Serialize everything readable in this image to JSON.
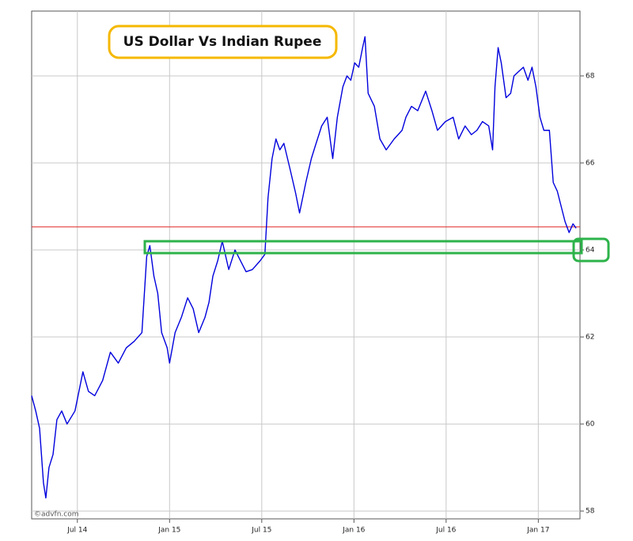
{
  "chart_data": {
    "type": "line",
    "title": "US Dollar Vs Indian Rupee",
    "credit": "©advfn.com",
    "color": "#0000dd",
    "grid": true,
    "xlim": [
      2014.252,
      2017.226
    ],
    "ylim": [
      57.82,
      69.49
    ],
    "xticks": [
      {
        "value": 2014.5,
        "label": "Jul 14"
      },
      {
        "value": 2015.0,
        "label": "Jan 15"
      },
      {
        "value": 2015.5,
        "label": "Jul 15"
      },
      {
        "value": 2016.0,
        "label": "Jan 16"
      },
      {
        "value": 2016.5,
        "label": "Jul 16"
      },
      {
        "value": 2017.0,
        "label": "Jan 17"
      }
    ],
    "yticks": [
      58,
      60,
      62,
      64,
      66,
      68
    ],
    "reference_line": {
      "value": 64.53,
      "color": "#e02020"
    },
    "x": [
      2014.252,
      2014.274,
      2014.295,
      2014.316,
      2014.329,
      2014.346,
      2014.368,
      2014.389,
      2014.415,
      2014.444,
      2014.487,
      2014.53,
      2014.56,
      2014.594,
      2014.637,
      2014.679,
      2014.722,
      2014.765,
      2014.808,
      2014.85,
      2014.876,
      2014.893,
      2014.915,
      2014.936,
      2014.957,
      2014.987,
      2015.0,
      2015.03,
      2015.064,
      2015.098,
      2015.128,
      2015.158,
      2015.192,
      2015.214,
      2015.235,
      2015.261,
      2015.286,
      2015.321,
      2015.355,
      2015.385,
      2015.415,
      2015.449,
      2015.491,
      2015.517,
      2015.534,
      2015.556,
      2015.577,
      2015.598,
      2015.62,
      2015.654,
      2015.684,
      2015.705,
      2015.739,
      2015.769,
      2015.791,
      2015.825,
      2015.855,
      2015.885,
      2015.91,
      2015.94,
      2015.962,
      2015.983,
      2016.004,
      2016.026,
      2016.047,
      2016.06,
      2016.077,
      2016.111,
      2016.141,
      2016.175,
      2016.218,
      2016.261,
      2016.282,
      2016.312,
      2016.346,
      2016.389,
      2016.423,
      2016.453,
      2016.496,
      2016.538,
      2016.568,
      2016.603,
      2016.637,
      2016.667,
      2016.697,
      2016.731,
      2016.752,
      2016.765,
      2016.782,
      2016.799,
      2016.825,
      2016.85,
      2016.868,
      2016.893,
      2016.919,
      2016.944,
      2016.966,
      2016.987,
      2017.009,
      2017.03,
      2017.06,
      2017.081,
      2017.103,
      2017.124,
      2017.145,
      2017.167,
      2017.188,
      2017.205
    ],
    "values": [
      60.65,
      60.3,
      59.9,
      58.65,
      58.3,
      59.0,
      59.3,
      60.1,
      60.3,
      60.0,
      60.3,
      61.2,
      60.75,
      60.65,
      61.0,
      61.65,
      61.4,
      61.75,
      61.9,
      62.1,
      63.85,
      64.1,
      63.4,
      63.0,
      62.1,
      61.75,
      61.4,
      62.1,
      62.45,
      62.9,
      62.65,
      62.1,
      62.45,
      62.8,
      63.4,
      63.75,
      64.2,
      63.55,
      64.0,
      63.75,
      63.5,
      63.55,
      63.75,
      63.9,
      65.2,
      66.1,
      66.55,
      66.3,
      66.45,
      65.85,
      65.3,
      64.85,
      65.55,
      66.1,
      66.4,
      66.85,
      67.05,
      66.1,
      67.05,
      67.75,
      68.0,
      67.9,
      68.3,
      68.2,
      68.65,
      68.9,
      67.6,
      67.3,
      66.55,
      66.3,
      66.55,
      66.75,
      67.05,
      67.3,
      67.2,
      67.65,
      67.2,
      66.75,
      66.95,
      67.05,
      66.55,
      66.85,
      66.65,
      66.75,
      66.95,
      66.85,
      66.3,
      67.75,
      68.65,
      68.3,
      67.5,
      67.6,
      68.0,
      68.1,
      68.2,
      67.9,
      68.2,
      67.75,
      67.05,
      66.75,
      66.75,
      65.55,
      65.35,
      65.0,
      64.65,
      64.4,
      64.6,
      64.5
    ]
  }
}
